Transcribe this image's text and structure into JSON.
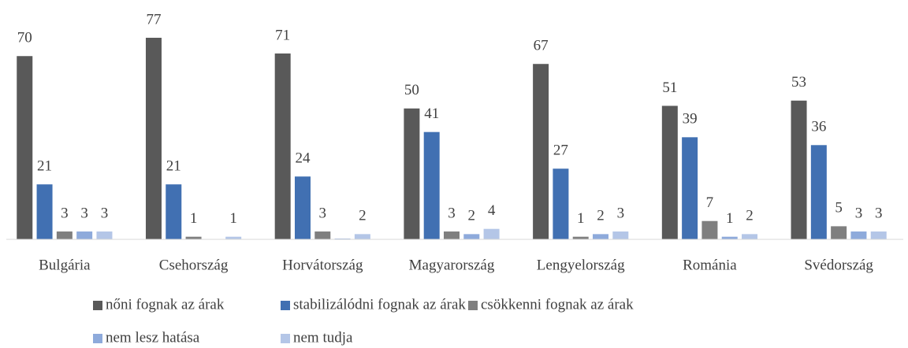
{
  "chart_data": {
    "type": "bar",
    "categories": [
      "Bulgária",
      "Csehország",
      "Horvátország",
      "Magyarország",
      "Lengyelország",
      "Románia",
      "Svédország"
    ],
    "ylim": [
      0,
      80
    ],
    "legend": "bottom",
    "series": [
      {
        "name": "nőni fognak az árak",
        "color": "#595959",
        "values": [
          70,
          77,
          71,
          50,
          67,
          51,
          53
        ]
      },
      {
        "name": "stabilizálódni fognak az árak",
        "color": "#4170b2",
        "values": [
          21,
          21,
          24,
          41,
          27,
          39,
          36
        ]
      },
      {
        "name": "csökkenni fognak az árak",
        "color": "#7f7f7f",
        "values": [
          3,
          1,
          3,
          3,
          1,
          7,
          5
        ]
      },
      {
        "name": "nem lesz hatása",
        "color": "#8eaadb",
        "values": [
          3,
          null,
          0.3,
          2,
          2,
          1,
          3
        ],
        "value_labels": [
          "3",
          null,
          null,
          "2",
          "2",
          "1",
          "3"
        ]
      },
      {
        "name": "nem tudja",
        "color": "#b4c6e7",
        "values": [
          3,
          1,
          2,
          4,
          3,
          2,
          3
        ]
      }
    ]
  }
}
